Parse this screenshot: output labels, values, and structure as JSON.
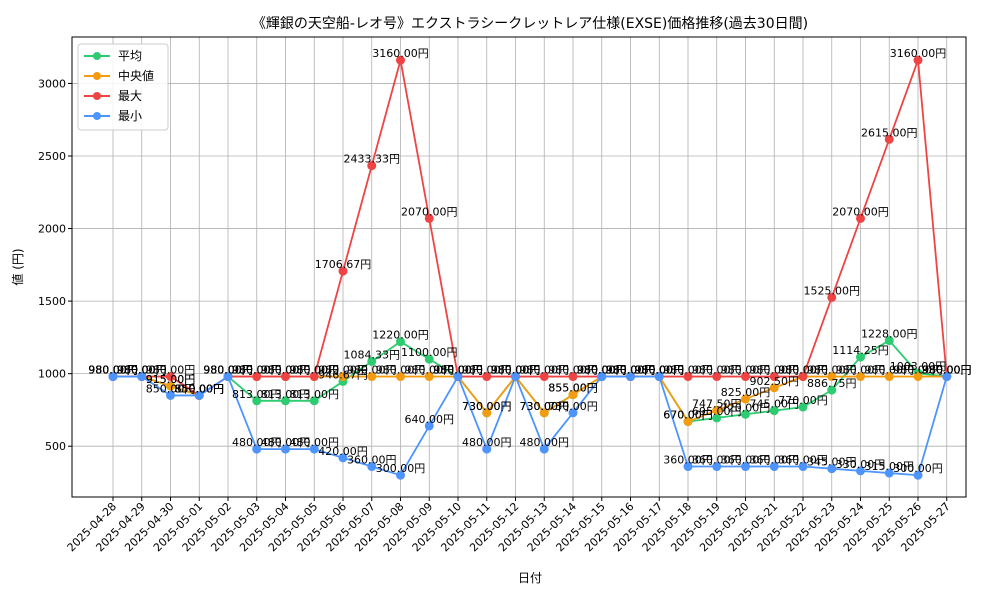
{
  "chart_data": {
    "type": "line",
    "title": "《輝銀の天空船-レオ号》エクストラシークレットレア仕様(EXSE)価格推移(過去30日間)",
    "xlabel": "日付",
    "ylabel": "値 (円)",
    "ylim": [
      150,
      3320
    ],
    "yticks": [
      500,
      1000,
      1500,
      2000,
      2500,
      3000
    ],
    "grid": true,
    "legend_position": "top-left",
    "value_suffix": "円",
    "categories": [
      "2025-04-28",
      "2025-04-29",
      "2025-04-30",
      "2025-05-01",
      "2025-05-02",
      "2025-05-03",
      "2025-05-04",
      "2025-05-05",
      "2025-05-06",
      "2025-05-07",
      "2025-05-08",
      "2025-05-09",
      "2025-05-10",
      "2025-05-11",
      "2025-05-12",
      "2025-05-13",
      "2025-05-14",
      "2025-05-15",
      "2025-05-16",
      "2025-05-17",
      "2025-05-18",
      "2025-05-19",
      "2025-05-20",
      "2025-05-21",
      "2025-05-22",
      "2025-05-23",
      "2025-05-24",
      "2025-05-25",
      "2025-05-26",
      "2025-05-27"
    ],
    "series": [
      {
        "name": "平均",
        "color": "#2ecc71",
        "values": [
          980,
          980,
          915,
          850,
          980,
          813,
          813,
          813,
          946.67,
          1084.33,
          1220,
          1100,
          980,
          730,
          980,
          730,
          855,
          980,
          980,
          980,
          670,
          695,
          720,
          745,
          770,
          886.75,
          1114.25,
          1228,
          1003,
          980
        ]
      },
      {
        "name": "中央値",
        "color": "#f39c12",
        "values": [
          980,
          980,
          915,
          850,
          980,
          980,
          980,
          980,
          980,
          980,
          980,
          980,
          980,
          730,
          980,
          730,
          855,
          980,
          980,
          980,
          670,
          747.5,
          825,
          902.5,
          980,
          980,
          980,
          980,
          980,
          980
        ]
      },
      {
        "name": "最大",
        "color": "#ef4444",
        "values": [
          980,
          980,
          980,
          850,
          980,
          980,
          980,
          980,
          1706.67,
          2433.33,
          3160,
          2070,
          980,
          980,
          980,
          980,
          980,
          980,
          980,
          980,
          980,
          980,
          980,
          980,
          980,
          1525,
          2070,
          2615,
          3160,
          980
        ]
      },
      {
        "name": "最小",
        "color": "#4d94ff",
        "values": [
          980,
          980,
          850,
          850,
          980,
          480,
          480,
          480,
          420,
          360,
          300,
          640,
          980,
          480,
          980,
          480,
          730,
          980,
          980,
          980,
          360,
          360,
          360,
          360,
          360,
          345,
          330,
          315,
          300,
          980
        ]
      }
    ]
  }
}
